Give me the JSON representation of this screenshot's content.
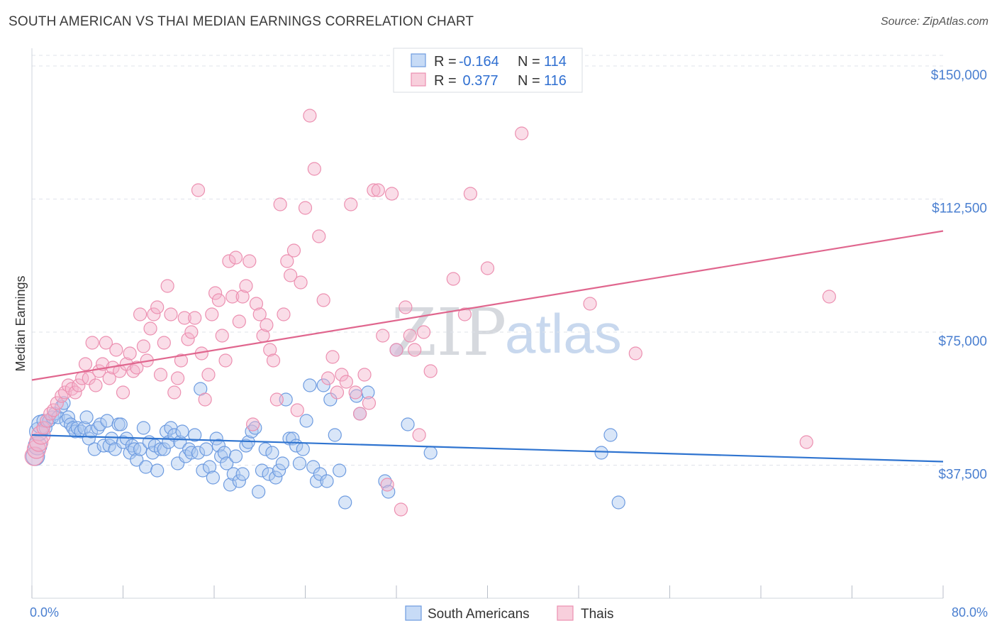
{
  "title": "SOUTH AMERICAN VS THAI MEDIAN EARNINGS CORRELATION CHART",
  "source": "Source: ZipAtlas.com",
  "watermark": {
    "zip": "ZIP",
    "atlas": "atlas"
  },
  "colors": {
    "blue": "#6d9be0",
    "blue_line": "#2f74d0",
    "pink": "#ec8fb0",
    "pink_line": "#e0668e",
    "grid": "#dfe3ea",
    "tick_label": "#4a7fd0"
  },
  "legend": {
    "entries": [
      {
        "r_label": "R =",
        "r_value": "-0.164",
        "n_label": "N =",
        "n_value": "114"
      },
      {
        "r_label": "R =",
        "r_value": " 0.377",
        "n_label": "N =",
        "n_value": "116"
      }
    ]
  },
  "bottom_legend": [
    "South Americans",
    "Thais"
  ],
  "chart_data": {
    "type": "scatter",
    "title": "SOUTH AMERICAN VS THAI MEDIAN EARNINGS CORRELATION CHART",
    "xlabel": "",
    "ylabel": "Median Earnings",
    "xlim": [
      0,
      80
    ],
    "ylim": [
      0,
      155000
    ],
    "x_tick_labels": [
      "0.0%",
      "80.0%"
    ],
    "y_ticks": [
      37500,
      75000,
      112500,
      150000
    ],
    "y_tick_labels": [
      "$37,500",
      "$75,000",
      "$112,500",
      "$150,000"
    ],
    "grid": true,
    "legend_position": "top-center",
    "series": [
      {
        "name": "South Americans",
        "r": -0.164,
        "n": 114,
        "trend": {
          "x": [
            0,
            80
          ],
          "y": [
            46000,
            38500
          ]
        },
        "points": [
          [
            0.3,
            40000
          ],
          [
            0.5,
            43000
          ],
          [
            0.6,
            47000
          ],
          [
            0.8,
            49000
          ],
          [
            1.0,
            50000
          ],
          [
            1.2,
            48000
          ],
          [
            1.5,
            50000
          ],
          [
            1.8,
            51000
          ],
          [
            2.0,
            52000
          ],
          [
            2.3,
            51000
          ],
          [
            2.6,
            54000
          ],
          [
            2.8,
            55000
          ],
          [
            3.0,
            50000
          ],
          [
            3.2,
            51000
          ],
          [
            3.4,
            49000
          ],
          [
            3.6,
            48000
          ],
          [
            3.8,
            47000
          ],
          [
            4.0,
            48000
          ],
          [
            4.3,
            47000
          ],
          [
            4.6,
            48000
          ],
          [
            4.8,
            51000
          ],
          [
            5.0,
            45000
          ],
          [
            5.2,
            47000
          ],
          [
            5.5,
            42000
          ],
          [
            5.8,
            48000
          ],
          [
            6.0,
            49000
          ],
          [
            6.3,
            43000
          ],
          [
            6.6,
            50000
          ],
          [
            6.8,
            43000
          ],
          [
            7.0,
            45000
          ],
          [
            7.3,
            42000
          ],
          [
            7.6,
            49000
          ],
          [
            7.8,
            49000
          ],
          [
            8.0,
            44000
          ],
          [
            8.3,
            45000
          ],
          [
            8.6,
            41000
          ],
          [
            8.8,
            43000
          ],
          [
            9.0,
            42000
          ],
          [
            9.2,
            39000
          ],
          [
            9.5,
            42000
          ],
          [
            9.8,
            48000
          ],
          [
            10.0,
            37000
          ],
          [
            10.3,
            44000
          ],
          [
            10.6,
            41000
          ],
          [
            10.8,
            43000
          ],
          [
            11.0,
            36000
          ],
          [
            11.3,
            42000
          ],
          [
            11.6,
            42000
          ],
          [
            11.8,
            47000
          ],
          [
            12.0,
            44000
          ],
          [
            12.2,
            48000
          ],
          [
            12.5,
            46000
          ],
          [
            12.8,
            38000
          ],
          [
            13.0,
            44000
          ],
          [
            13.2,
            47000
          ],
          [
            13.5,
            40000
          ],
          [
            13.8,
            42000
          ],
          [
            14.0,
            41000
          ],
          [
            14.3,
            46000
          ],
          [
            14.6,
            41000
          ],
          [
            14.8,
            59000
          ],
          [
            15.0,
            36000
          ],
          [
            15.3,
            42000
          ],
          [
            15.6,
            37000
          ],
          [
            15.9,
            34000
          ],
          [
            16.2,
            45000
          ],
          [
            16.4,
            43000
          ],
          [
            16.6,
            40000
          ],
          [
            16.9,
            41000
          ],
          [
            17.1,
            38000
          ],
          [
            17.4,
            32000
          ],
          [
            17.7,
            35000
          ],
          [
            17.9,
            40000
          ],
          [
            18.2,
            33000
          ],
          [
            18.5,
            35000
          ],
          [
            18.8,
            43000
          ],
          [
            19.0,
            44000
          ],
          [
            19.3,
            47000
          ],
          [
            19.6,
            48000
          ],
          [
            19.9,
            30000
          ],
          [
            20.2,
            36000
          ],
          [
            20.5,
            42000
          ],
          [
            20.8,
            35000
          ],
          [
            21.1,
            41000
          ],
          [
            21.4,
            34000
          ],
          [
            21.7,
            36000
          ],
          [
            22.0,
            38000
          ],
          [
            22.3,
            56000
          ],
          [
            22.6,
            45000
          ],
          [
            22.9,
            45000
          ],
          [
            23.2,
            43000
          ],
          [
            23.5,
            38000
          ],
          [
            23.8,
            42000
          ],
          [
            24.1,
            50000
          ],
          [
            24.4,
            60000
          ],
          [
            24.7,
            37000
          ],
          [
            25.0,
            33000
          ],
          [
            25.3,
            35000
          ],
          [
            25.6,
            60000
          ],
          [
            25.9,
            33000
          ],
          [
            26.2,
            56000
          ],
          [
            26.6,
            46000
          ],
          [
            27.0,
            36000
          ],
          [
            27.5,
            27000
          ],
          [
            28.5,
            57000
          ],
          [
            28.8,
            52000
          ],
          [
            29.5,
            58000
          ],
          [
            31.0,
            33000
          ],
          [
            31.3,
            30000
          ],
          [
            32.0,
            70000
          ],
          [
            33.0,
            49000
          ],
          [
            35.0,
            41000
          ],
          [
            50.0,
            41000
          ],
          [
            50.8,
            46000
          ],
          [
            51.5,
            27000
          ]
        ]
      },
      {
        "name": "Thais",
        "r": 0.377,
        "n": 116,
        "trend": {
          "x": [
            0,
            80
          ],
          "y": [
            61500,
            103500
          ]
        },
        "points": [
          [
            0.2,
            40000
          ],
          [
            0.4,
            42000
          ],
          [
            0.6,
            44000
          ],
          [
            0.8,
            46000
          ],
          [
            1.0,
            48000
          ],
          [
            1.3,
            50000
          ],
          [
            1.6,
            52000
          ],
          [
            1.9,
            53000
          ],
          [
            2.2,
            55000
          ],
          [
            2.6,
            57000
          ],
          [
            2.9,
            58000
          ],
          [
            3.2,
            60000
          ],
          [
            3.5,
            59000
          ],
          [
            3.8,
            58000
          ],
          [
            4.1,
            60000
          ],
          [
            4.4,
            62000
          ],
          [
            4.7,
            66000
          ],
          [
            5.0,
            62000
          ],
          [
            5.3,
            72000
          ],
          [
            5.6,
            60000
          ],
          [
            5.9,
            64000
          ],
          [
            6.2,
            66000
          ],
          [
            6.5,
            72000
          ],
          [
            6.8,
            62000
          ],
          [
            7.1,
            65000
          ],
          [
            7.4,
            70000
          ],
          [
            7.7,
            64000
          ],
          [
            8.0,
            58000
          ],
          [
            8.3,
            66000
          ],
          [
            8.6,
            69000
          ],
          [
            8.9,
            64000
          ],
          [
            9.2,
            65000
          ],
          [
            9.5,
            80000
          ],
          [
            9.8,
            71000
          ],
          [
            10.1,
            67000
          ],
          [
            10.4,
            76000
          ],
          [
            10.7,
            80000
          ],
          [
            11.0,
            82000
          ],
          [
            11.3,
            63000
          ],
          [
            11.6,
            72000
          ],
          [
            11.9,
            88000
          ],
          [
            12.2,
            80000
          ],
          [
            12.5,
            58000
          ],
          [
            12.8,
            62000
          ],
          [
            13.1,
            67000
          ],
          [
            13.4,
            79000
          ],
          [
            13.7,
            73000
          ],
          [
            14.0,
            75000
          ],
          [
            14.3,
            79000
          ],
          [
            14.6,
            115000
          ],
          [
            14.9,
            69000
          ],
          [
            15.2,
            56000
          ],
          [
            15.5,
            63000
          ],
          [
            15.8,
            80000
          ],
          [
            16.1,
            86000
          ],
          [
            16.4,
            84000
          ],
          [
            16.7,
            74000
          ],
          [
            17.0,
            67000
          ],
          [
            17.3,
            95000
          ],
          [
            17.6,
            85000
          ],
          [
            17.9,
            96000
          ],
          [
            18.2,
            78000
          ],
          [
            18.5,
            85000
          ],
          [
            18.8,
            88000
          ],
          [
            19.1,
            95000
          ],
          [
            19.4,
            49000
          ],
          [
            19.7,
            83000
          ],
          [
            20.0,
            80000
          ],
          [
            20.3,
            74000
          ],
          [
            20.6,
            77000
          ],
          [
            20.9,
            70000
          ],
          [
            21.2,
            67000
          ],
          [
            21.5,
            56000
          ],
          [
            21.8,
            111000
          ],
          [
            22.1,
            80000
          ],
          [
            22.4,
            95000
          ],
          [
            22.7,
            91000
          ],
          [
            23.0,
            98000
          ],
          [
            23.3,
            53000
          ],
          [
            23.6,
            89000
          ],
          [
            24.0,
            110000
          ],
          [
            24.4,
            136000
          ],
          [
            24.8,
            121000
          ],
          [
            25.2,
            102000
          ],
          [
            25.6,
            84000
          ],
          [
            26.0,
            62000
          ],
          [
            26.4,
            68000
          ],
          [
            26.8,
            58000
          ],
          [
            27.2,
            63000
          ],
          [
            27.6,
            61000
          ],
          [
            28.0,
            111000
          ],
          [
            28.4,
            58000
          ],
          [
            28.8,
            52000
          ],
          [
            29.2,
            63000
          ],
          [
            29.6,
            55000
          ],
          [
            30.0,
            115000
          ],
          [
            30.4,
            115000
          ],
          [
            30.8,
            74000
          ],
          [
            31.2,
            32000
          ],
          [
            31.6,
            114000
          ],
          [
            32.0,
            70000
          ],
          [
            32.4,
            25000
          ],
          [
            32.8,
            82000
          ],
          [
            33.2,
            74000
          ],
          [
            33.6,
            70000
          ],
          [
            34.0,
            46000
          ],
          [
            34.4,
            75000
          ],
          [
            35.0,
            64000
          ],
          [
            37.0,
            90000
          ],
          [
            38.0,
            80000
          ],
          [
            38.5,
            114000
          ],
          [
            40.0,
            93000
          ],
          [
            43.0,
            131000
          ],
          [
            49.0,
            83000
          ],
          [
            53.0,
            69000
          ],
          [
            68.0,
            44000
          ],
          [
            70.0,
            85000
          ]
        ]
      }
    ]
  }
}
